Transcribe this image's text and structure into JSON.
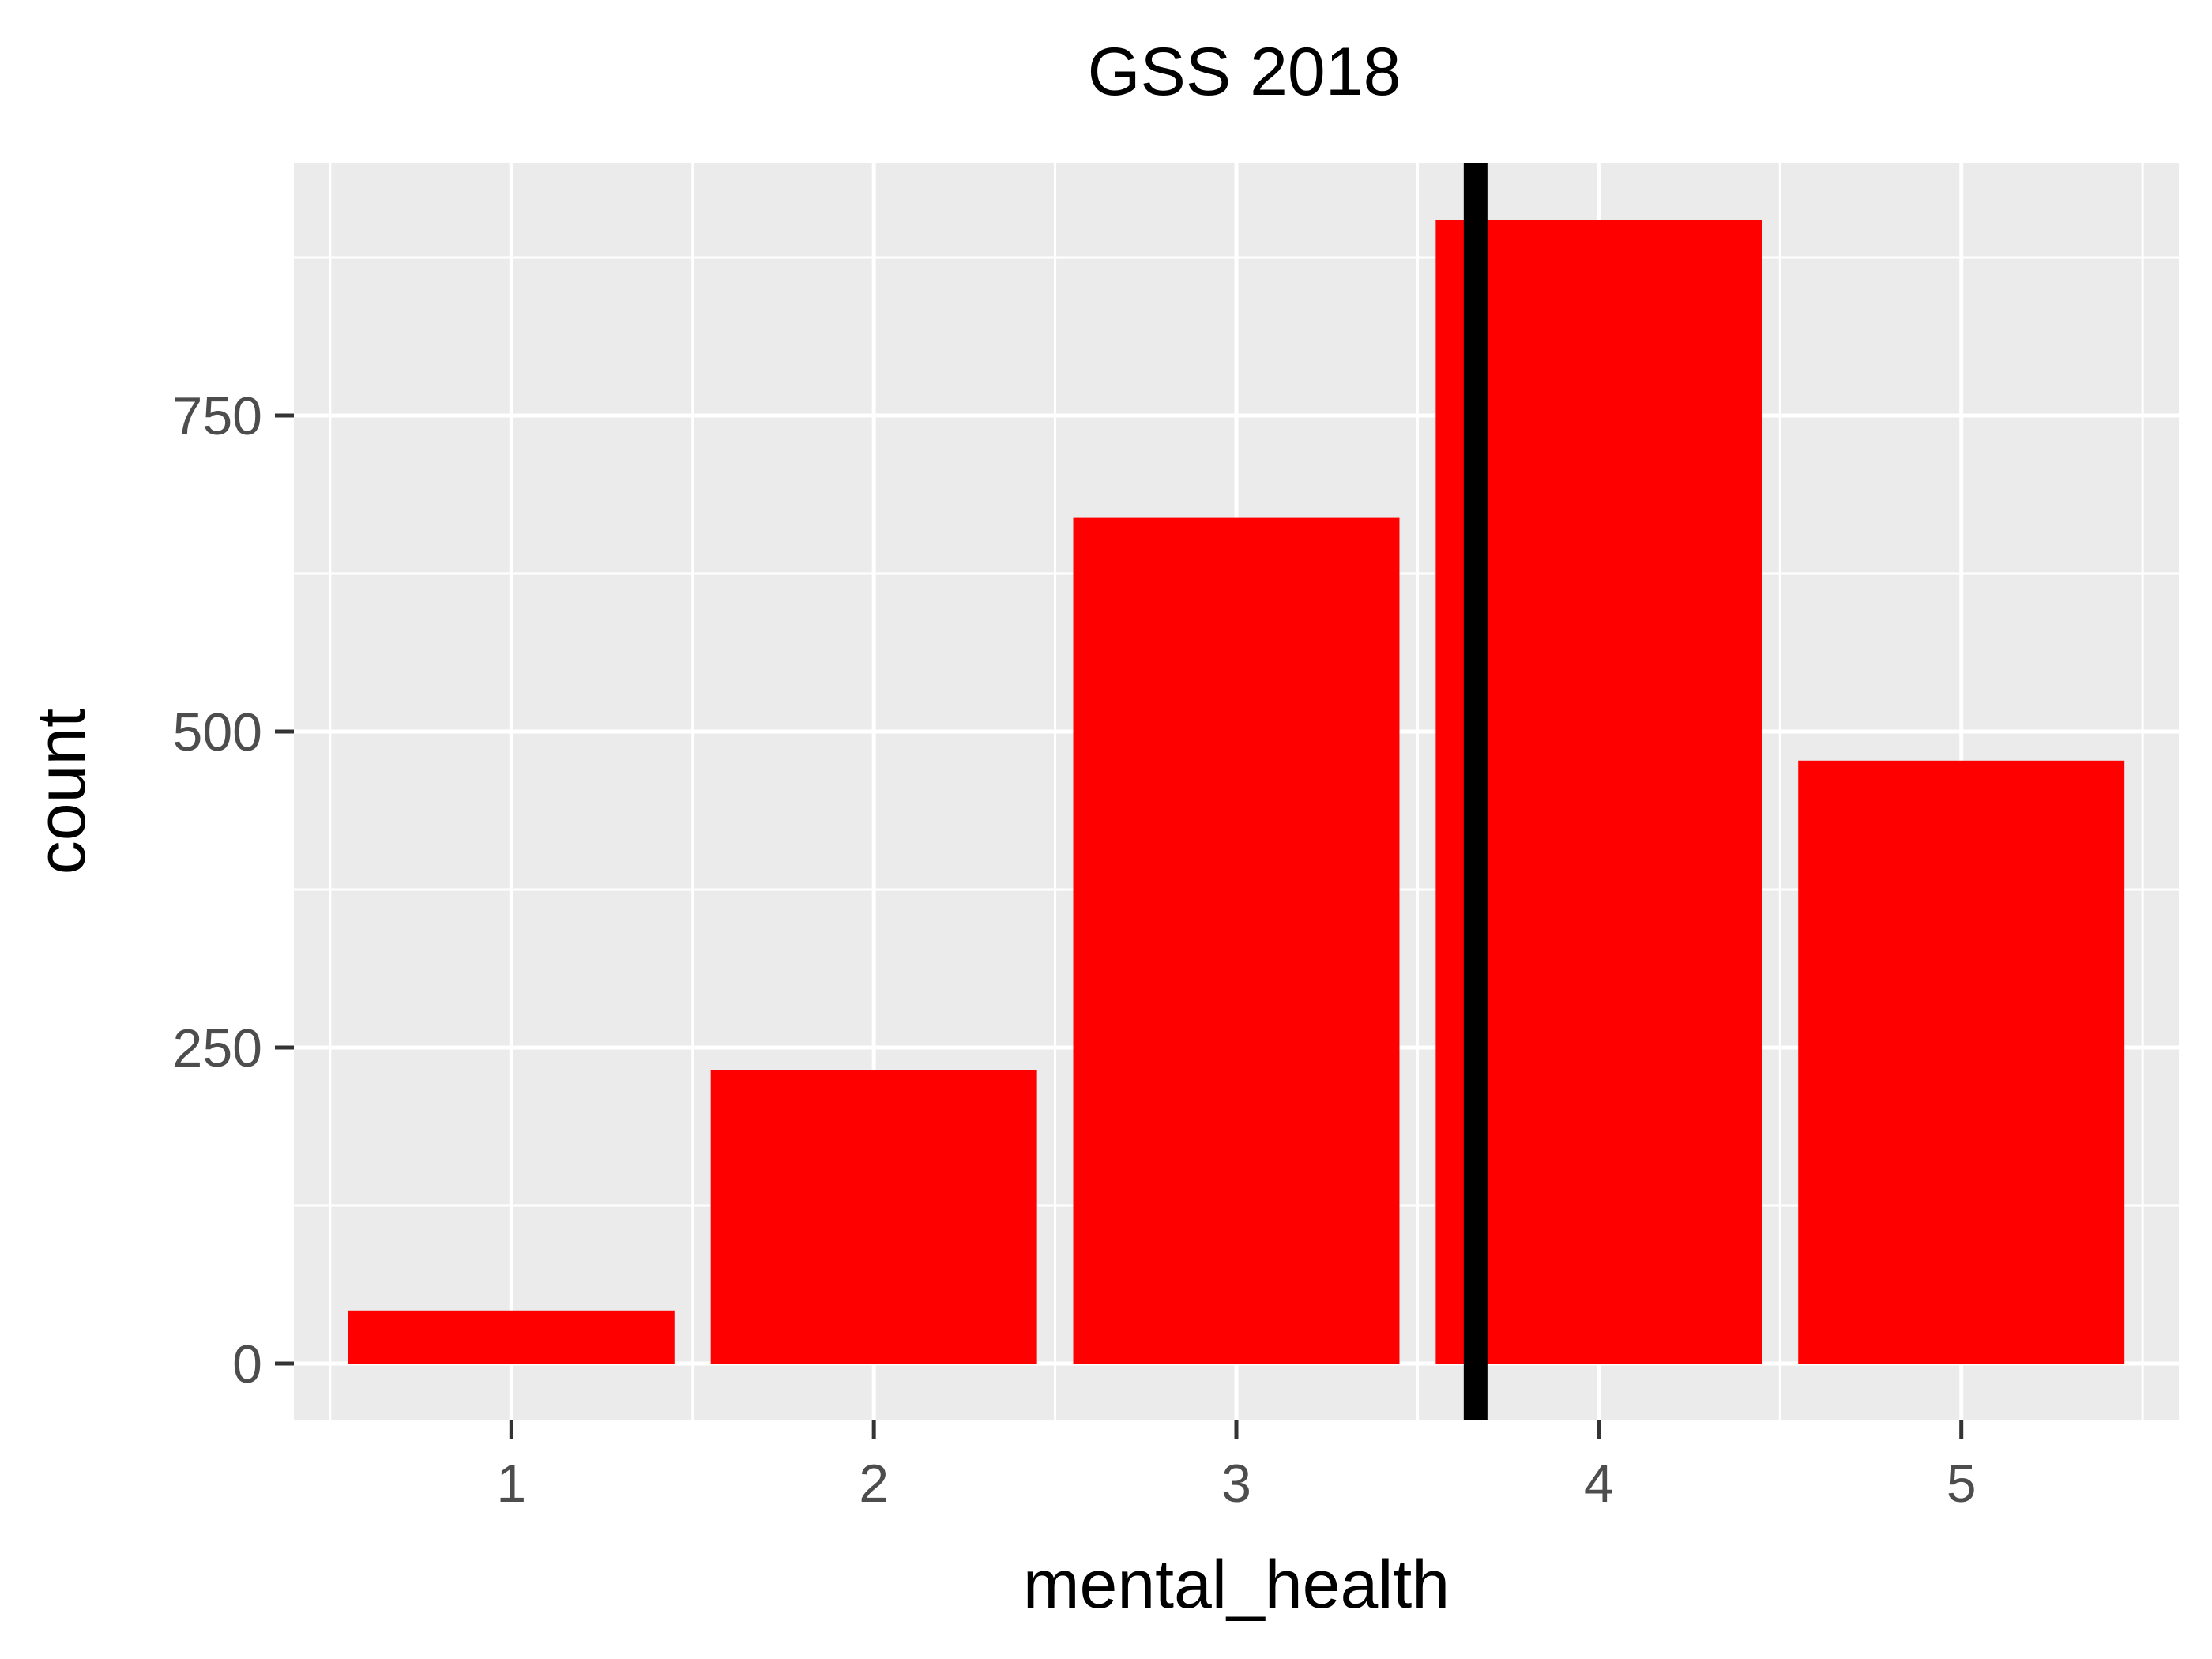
{
  "chart_data": {
    "type": "bar",
    "title": "GSS 2018",
    "xlabel": "mental_health",
    "ylabel": "count",
    "categories": [
      "1",
      "2",
      "3",
      "4",
      "5"
    ],
    "values": [
      42,
      232,
      669,
      905,
      477
    ],
    "x_ticks": [
      "1",
      "2",
      "3",
      "4",
      "5"
    ],
    "y_ticks": [
      0,
      250,
      500,
      750
    ],
    "y_tick_labels": [
      "0",
      "250",
      "500",
      "750"
    ],
    "xlim": [
      0.4,
      5.6
    ],
    "ylim": [
      -45,
      950
    ],
    "vline_x": 3.66,
    "grid": true,
    "legend": "none",
    "colors": {
      "bar_fill": "#ff0000",
      "vline": "#000000",
      "panel_background": "#ebebeb",
      "grid": "#ffffff"
    }
  }
}
